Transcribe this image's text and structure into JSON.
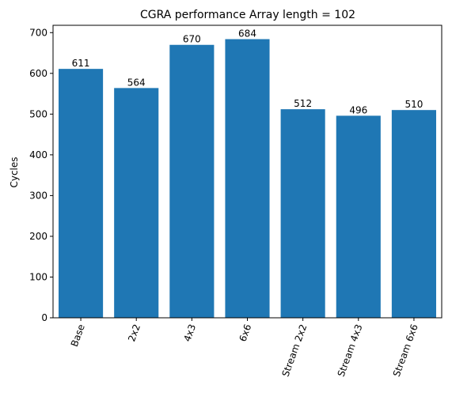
{
  "chart_data": {
    "type": "bar",
    "title": "CGRA performance Array length = 102",
    "xlabel": "",
    "ylabel": "Cycles",
    "categories": [
      "Base",
      "2x2",
      "4x3",
      "6x6",
      "Stream 2x2",
      "Stream 4x3",
      "Stream 6x6"
    ],
    "values": [
      611,
      564,
      670,
      684,
      512,
      496,
      510
    ],
    "value_labels": [
      "611",
      "564",
      "670",
      "684",
      "512",
      "496",
      "510"
    ],
    "ylim": [
      0,
      718
    ],
    "yticks": [
      0,
      100,
      200,
      300,
      400,
      500,
      600,
      700
    ],
    "ytick_labels": [
      "0",
      "100",
      "200",
      "300",
      "400",
      "500",
      "600",
      "700"
    ],
    "x_tick_rotation": 70,
    "grid": false,
    "bar_color": "#1f77b4"
  }
}
